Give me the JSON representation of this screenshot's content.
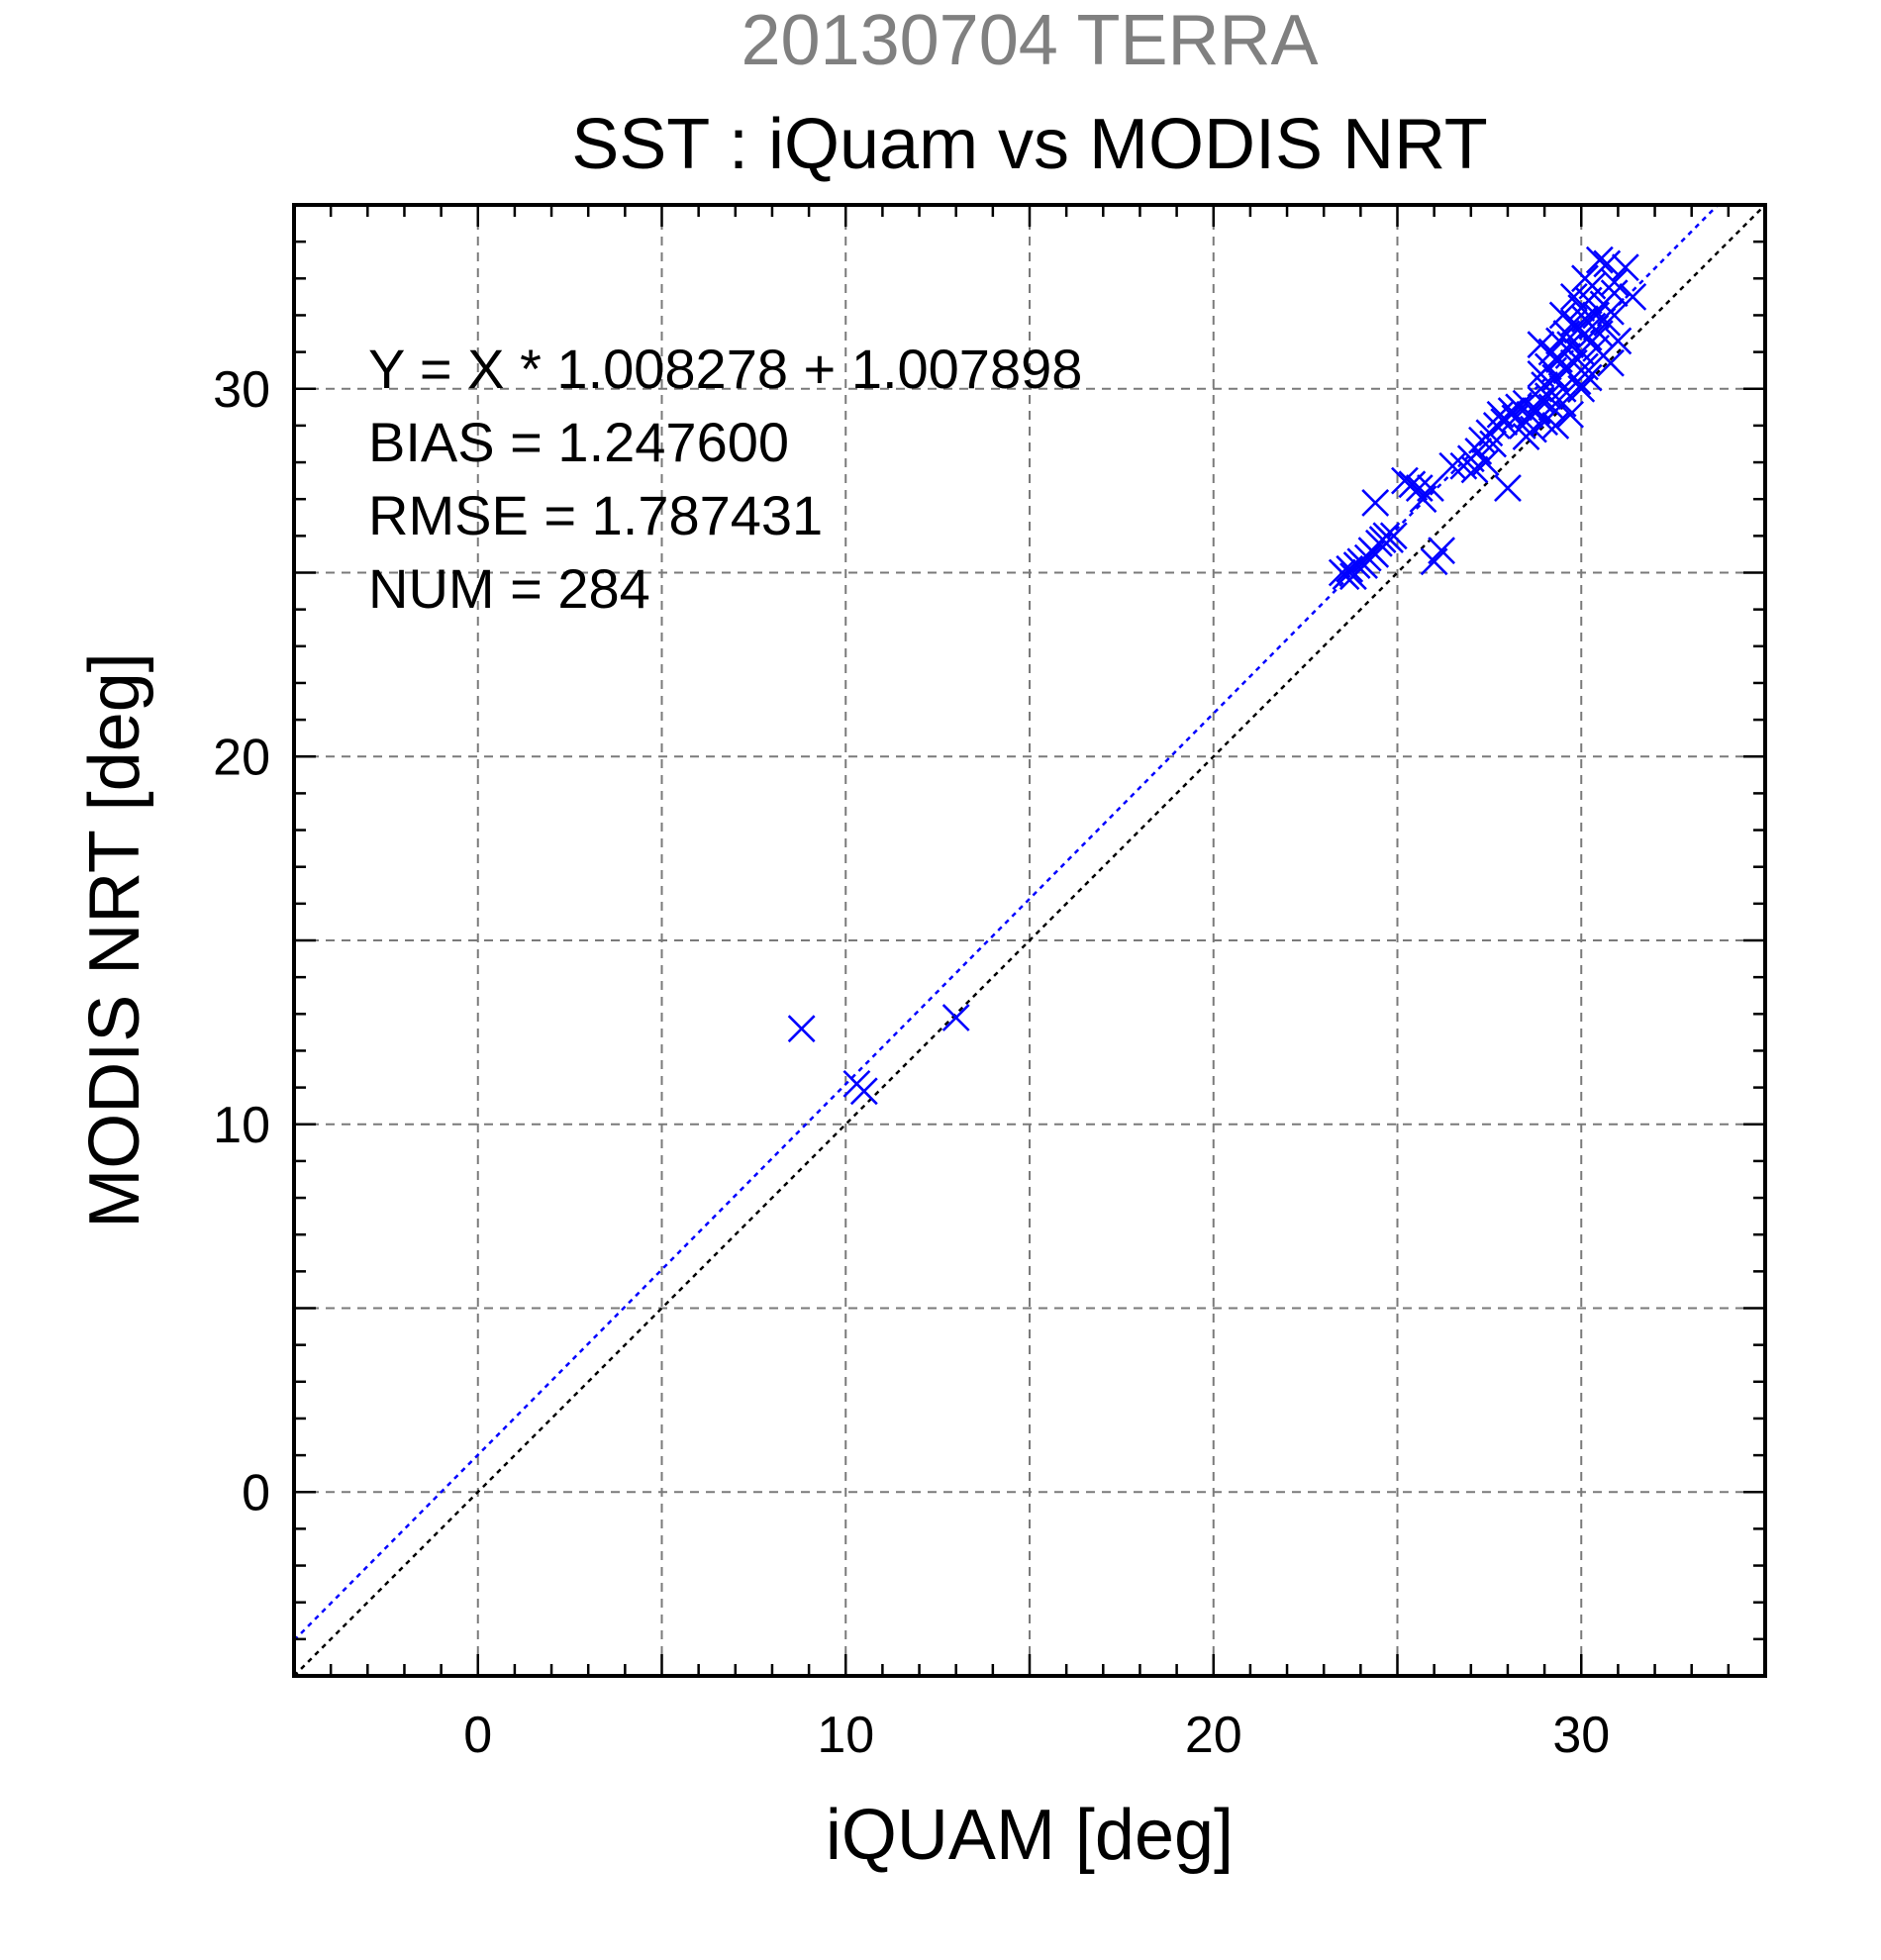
{
  "chart_data": {
    "type": "scatter",
    "supertitle": "20130704 TERRA",
    "title": "SST : iQuam vs MODIS NRT",
    "xlabel": "iQUAM [deg]",
    "ylabel": "MODIS NRT [deg]",
    "xlim": [
      -5,
      35
    ],
    "ylim": [
      -5,
      35
    ],
    "major_ticks": [
      0,
      10,
      20,
      30
    ],
    "major_tick_labels": [
      "0",
      "10",
      "20",
      "30"
    ],
    "grid_values": [
      0,
      5,
      10,
      15,
      20,
      25,
      30
    ],
    "grid": true,
    "stats": {
      "equation": "Y = X * 1.008278 + 1.007898",
      "bias": "BIAS = 1.247600",
      "rmse": "RMSE = 1.787431",
      "num": "NUM = 284"
    },
    "lines": [
      {
        "kind": "identity",
        "slope": 1.0,
        "intercept": 0.0,
        "color": "#000000"
      },
      {
        "kind": "regression",
        "slope": 1.008278,
        "intercept": 1.007898,
        "color": "#0000ff"
      }
    ],
    "marker": "x",
    "marker_color": "#0000ff",
    "points": [
      [
        8.8,
        12.6
      ],
      [
        10.3,
        11.1
      ],
      [
        10.5,
        10.9
      ],
      [
        13.0,
        12.9
      ],
      [
        23.5,
        25.0
      ],
      [
        23.6,
        24.9
      ],
      [
        23.7,
        25.1
      ],
      [
        23.8,
        24.9
      ],
      [
        23.9,
        25.2
      ],
      [
        24.0,
        25.3
      ],
      [
        24.1,
        25.2
      ],
      [
        24.2,
        25.4
      ],
      [
        24.3,
        25.6
      ],
      [
        24.4,
        25.5
      ],
      [
        24.5,
        25.8
      ],
      [
        24.6,
        25.9
      ],
      [
        24.7,
        26.0
      ],
      [
        24.8,
        25.9
      ],
      [
        24.9,
        26.0
      ],
      [
        24.4,
        26.9
      ],
      [
        25.2,
        27.5
      ],
      [
        25.4,
        27.4
      ],
      [
        25.6,
        27.3
      ],
      [
        25.7,
        27.0
      ],
      [
        25.9,
        27.3
      ],
      [
        26.0,
        25.3
      ],
      [
        26.2,
        25.6
      ],
      [
        26.5,
        27.9
      ],
      [
        26.8,
        27.9
      ],
      [
        27.0,
        28.1
      ],
      [
        27.1,
        27.8
      ],
      [
        27.2,
        28.3
      ],
      [
        27.3,
        28.6
      ],
      [
        27.4,
        28.0
      ],
      [
        27.5,
        28.8
      ],
      [
        27.6,
        28.5
      ],
      [
        27.7,
        29.0
      ],
      [
        27.8,
        29.3
      ],
      [
        27.9,
        29.1
      ],
      [
        28.0,
        27.3
      ],
      [
        28.1,
        29.4
      ],
      [
        28.2,
        29.2
      ],
      [
        28.3,
        29.5
      ],
      [
        28.4,
        29.0
      ],
      [
        28.5,
        29.6
      ],
      [
        28.5,
        28.7
      ],
      [
        28.6,
        29.3
      ],
      [
        28.7,
        28.9
      ],
      [
        28.8,
        29.4
      ],
      [
        28.9,
        29.7
      ],
      [
        28.9,
        30.4
      ],
      [
        29.0,
        30.1
      ],
      [
        29.0,
        29.1
      ],
      [
        29.1,
        29.8
      ],
      [
        29.1,
        30.6
      ],
      [
        29.2,
        29.5
      ],
      [
        29.2,
        31.0
      ],
      [
        29.3,
        30.3
      ],
      [
        29.3,
        29.0
      ],
      [
        29.4,
        30.8
      ],
      [
        29.4,
        31.3
      ],
      [
        29.5,
        30.0
      ],
      [
        29.5,
        29.6
      ],
      [
        29.6,
        31.5
      ],
      [
        29.6,
        30.5
      ],
      [
        29.7,
        31.2
      ],
      [
        29.7,
        29.3
      ],
      [
        29.8,
        30.7
      ],
      [
        29.8,
        31.8
      ],
      [
        29.9,
        30.2
      ],
      [
        29.9,
        31.6
      ],
      [
        30.0,
        31.0
      ],
      [
        30.0,
        32.2
      ],
      [
        30.0,
        30.0
      ],
      [
        30.1,
        31.9
      ],
      [
        30.1,
        30.6
      ],
      [
        30.2,
        31.4
      ],
      [
        30.2,
        32.4
      ],
      [
        30.2,
        30.3
      ],
      [
        30.3,
        31.7
      ],
      [
        30.3,
        32.8
      ],
      [
        30.4,
        31.1
      ],
      [
        30.4,
        32.0
      ],
      [
        30.5,
        33.5
      ],
      [
        30.5,
        31.5
      ],
      [
        30.6,
        32.3
      ],
      [
        30.6,
        30.9
      ],
      [
        30.7,
        33.4
      ],
      [
        30.7,
        31.8
      ],
      [
        30.8,
        32.1
      ],
      [
        30.8,
        30.7
      ],
      [
        30.9,
        32.6
      ],
      [
        31.0,
        31.3
      ],
      [
        30.9,
        32.9
      ],
      [
        31.2,
        33.3
      ],
      [
        31.4,
        32.5
      ],
      [
        29.8,
        32.5
      ],
      [
        30.1,
        33.0
      ],
      [
        29.5,
        32.0
      ],
      [
        28.9,
        31.2
      ]
    ]
  }
}
